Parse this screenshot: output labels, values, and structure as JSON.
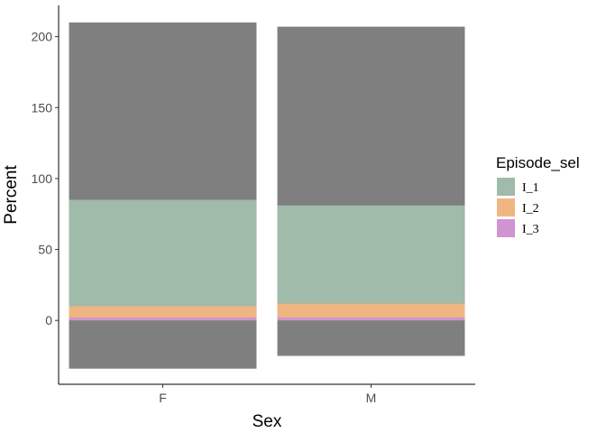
{
  "chart_data": {
    "type": "bar",
    "stacked": true,
    "categories": [
      "F",
      "M"
    ],
    "xlabel": "Sex",
    "ylabel": "Percent",
    "ylim": [
      -45,
      222
    ],
    "yticks": [
      0,
      50,
      100,
      150,
      200
    ],
    "grid": false,
    "legend": {
      "title": "Episode_sel",
      "position": "right"
    },
    "background_segments": [
      {
        "category": "F",
        "bottom": -34,
        "top": 210,
        "color": "#7f7f7f"
      },
      {
        "category": "M",
        "bottom": -25,
        "top": 207,
        "color": "#7f7f7f"
      }
    ],
    "series": [
      {
        "name": "I_3",
        "color": "#d094d0",
        "values": [
          2,
          2
        ]
      },
      {
        "name": "I_2",
        "color": "#f0b682",
        "values": [
          8,
          10
        ]
      },
      {
        "name": "I_1",
        "color": "#a0bba9",
        "values": [
          75,
          69
        ]
      }
    ]
  }
}
